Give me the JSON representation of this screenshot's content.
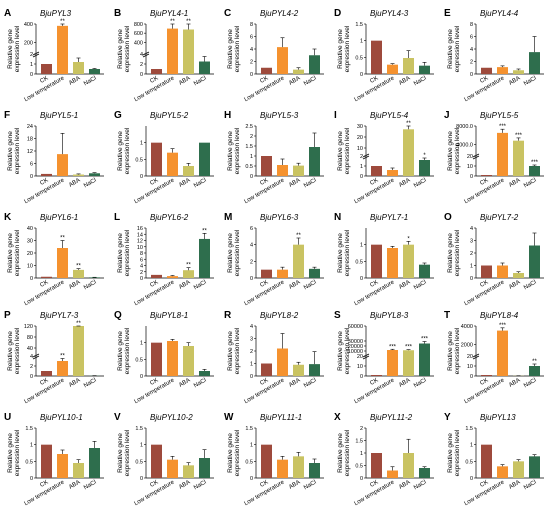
{
  "figure": {
    "colors": {
      "CK": "#9e4a3c",
      "Low temperature": "#f5922f",
      "ABA": "#c9c362",
      "NaCl": "#2e6e4d"
    },
    "ylabel_line1": "Relative gene",
    "ylabel_line2": "expression level"
  },
  "chart_data": [
    {
      "letter": "A",
      "title": "BjuPYL3",
      "type": "bar",
      "categories": [
        "CK",
        "Low temperature",
        "ABA",
        "NaCl"
      ],
      "values": [
        1.0,
        380,
        1.2,
        0.5
      ],
      "errors": [
        0.0,
        40,
        0.4,
        0.05
      ],
      "sig": [
        "",
        "**",
        "",
        ""
      ],
      "ylim": [
        0,
        400
      ],
      "ticks": [
        "0",
        "1",
        "2",
        "200",
        "400"
      ],
      "broken": true
    },
    {
      "letter": "B",
      "title": "BjuPYL4-1",
      "type": "bar",
      "categories": [
        "CK",
        "Low temperature",
        "ABA",
        "NaCl"
      ],
      "values": [
        1.0,
        700,
        680,
        2.5
      ],
      "errors": [
        0.0,
        150,
        120,
        1.0
      ],
      "sig": [
        "",
        "**",
        "**",
        ""
      ],
      "ylim": [
        0,
        800
      ],
      "ticks": [
        "0",
        "2",
        "4",
        "400",
        "600",
        "800"
      ],
      "broken": true
    },
    {
      "letter": "C",
      "title": "BjuPYL4-2",
      "type": "bar",
      "categories": [
        "CK",
        "Low temperature",
        "ABA",
        "NaCl"
      ],
      "values": [
        1.0,
        4.3,
        0.7,
        3.0
      ],
      "errors": [
        0.0,
        1.5,
        0.3,
        1.0
      ],
      "sig": [
        "",
        "",
        "",
        ""
      ],
      "ylim": [
        0,
        8
      ],
      "ticks": [
        "0",
        "2",
        "4",
        "6",
        "8"
      ],
      "broken": false
    },
    {
      "letter": "D",
      "title": "BjuPYL4-3",
      "type": "bar",
      "categories": [
        "CK",
        "Low temperature",
        "ABA",
        "NaCl"
      ],
      "values": [
        1.0,
        0.28,
        0.48,
        0.25
      ],
      "errors": [
        0.0,
        0.03,
        0.22,
        0.1
      ],
      "sig": [
        "",
        "",
        "",
        ""
      ],
      "ylim": [
        0,
        1.5
      ],
      "ticks": [
        "0",
        "0.5",
        "1",
        "1.5"
      ],
      "broken": false
    },
    {
      "letter": "E",
      "title": "BjuPYL4-4",
      "type": "bar",
      "categories": [
        "CK",
        "Low temperature",
        "ABA",
        "NaCl"
      ],
      "values": [
        1.0,
        1.1,
        0.6,
        3.5
      ],
      "errors": [
        0.0,
        0.2,
        0.2,
        2.5
      ],
      "sig": [
        "",
        "",
        "",
        ""
      ],
      "ylim": [
        0,
        8
      ],
      "ticks": [
        "0",
        "2",
        "4",
        "6",
        "8"
      ],
      "broken": false
    },
    {
      "letter": "F",
      "title": "BjuPYL5-1",
      "type": "bar",
      "categories": [
        "CK",
        "Low temperature",
        "ABA",
        "NaCl"
      ],
      "values": [
        1.0,
        10.5,
        0.7,
        1.3
      ],
      "errors": [
        0.0,
        10.0,
        0.3,
        0.3
      ],
      "sig": [
        "",
        "",
        "",
        ""
      ],
      "ylim": [
        0,
        24
      ],
      "ticks": [
        "0",
        "6",
        "12",
        "18",
        "24"
      ],
      "broken": false
    },
    {
      "letter": "G",
      "title": "BjuPYL5-2",
      "type": "bar",
      "categories": [
        "CK",
        "Low temperature",
        "ABA",
        "NaCl"
      ],
      "values": [
        1.0,
        0.7,
        0.3,
        1.0
      ],
      "errors": [
        0.0,
        0.12,
        0.08,
        0.0
      ],
      "sig": [
        "",
        "",
        "",
        ""
      ],
      "ylim": [
        0,
        1.5
      ],
      "ticks": [
        "0",
        "0.5",
        "1"
      ],
      "broken": false
    },
    {
      "letter": "H",
      "title": "BjuPYL5-3",
      "type": "bar",
      "categories": [
        "CK",
        "Low temperature",
        "ABA",
        "NaCl"
      ],
      "values": [
        1.0,
        0.55,
        0.52,
        1.45
      ],
      "errors": [
        0.0,
        0.3,
        0.12,
        0.7
      ],
      "sig": [
        "",
        "",
        "",
        ""
      ],
      "ylim": [
        0,
        2.5
      ],
      "ticks": [
        "0",
        "0.5",
        "1",
        "1.5",
        "2",
        "2.5"
      ],
      "broken": false
    },
    {
      "letter": "I",
      "title": "BjuPYL5-4",
      "type": "bar",
      "categories": [
        "CK",
        "Low temperature",
        "ABA",
        "NaCl"
      ],
      "values": [
        1.0,
        0.6,
        27,
        1.6
      ],
      "errors": [
        0.0,
        0.2,
        3.0,
        0.2
      ],
      "sig": [
        "",
        "",
        "**",
        "*"
      ],
      "ylim": [
        0,
        30
      ],
      "ticks": [
        "0",
        "1",
        "2",
        "10",
        "20",
        "30"
      ],
      "broken": true
    },
    {
      "letter": "J",
      "title": "BjuPYL5-5",
      "type": "bar",
      "categories": [
        "CK",
        "Low temperature",
        "ABA",
        "NaCl"
      ],
      "values": [
        1.0,
        6500,
        4800,
        10
      ],
      "errors": [
        0.0,
        800,
        600,
        1
      ],
      "sig": [
        "",
        "***",
        "***",
        "***"
      ],
      "ylim": [
        0,
        8000
      ],
      "ticks": [
        "0",
        "10",
        "20",
        "4000.0",
        "8000.0"
      ],
      "broken": true
    },
    {
      "letter": "K",
      "title": "BjuPYL6-1",
      "type": "bar",
      "categories": [
        "CK",
        "Low temperature",
        "ABA",
        "NaCl"
      ],
      "values": [
        1.0,
        24,
        6.5,
        0.5
      ],
      "errors": [
        0.0,
        6.0,
        1.0,
        0.1
      ],
      "sig": [
        "",
        "**",
        "**",
        ""
      ],
      "ylim": [
        0,
        40
      ],
      "ticks": [
        "0",
        "10",
        "20",
        "30",
        "40"
      ],
      "broken": false
    },
    {
      "letter": "L",
      "title": "BjuPYL6-2",
      "type": "bar",
      "categories": [
        "CK",
        "Low temperature",
        "ABA",
        "NaCl"
      ],
      "values": [
        1.0,
        0.6,
        2.5,
        12.5
      ],
      "errors": [
        0.0,
        0.2,
        0.8,
        1.8
      ],
      "sig": [
        "",
        "",
        "**",
        "**"
      ],
      "ylim": [
        0,
        16
      ],
      "ticks": [
        "0",
        "2",
        "4",
        "6",
        "8",
        "10",
        "12",
        "14",
        "16"
      ],
      "broken": false
    },
    {
      "letter": "M",
      "title": "BjuPYL6-3",
      "type": "bar",
      "categories": [
        "CK",
        "Low temperature",
        "ABA",
        "NaCl"
      ],
      "values": [
        1.0,
        1.0,
        4.0,
        1.1
      ],
      "errors": [
        0.0,
        0.3,
        0.8,
        0.2
      ],
      "sig": [
        "",
        "",
        "**",
        ""
      ],
      "ylim": [
        0,
        6
      ],
      "ticks": [
        "0",
        "2",
        "4",
        "6"
      ],
      "broken": false
    },
    {
      "letter": "N",
      "title": "BjuPYL7-1",
      "type": "bar",
      "categories": [
        "CK",
        "Low temperature",
        "ABA",
        "NaCl"
      ],
      "values": [
        1.0,
        0.9,
        1.0,
        0.4
      ],
      "errors": [
        0.0,
        0.05,
        0.1,
        0.05
      ],
      "sig": [
        "",
        "",
        "*",
        ""
      ],
      "ylim": [
        0,
        1.5
      ],
      "ticks": [
        "0",
        "0.5",
        "1"
      ],
      "broken": false
    },
    {
      "letter": "O",
      "title": "BjuPYL7-2",
      "type": "bar",
      "categories": [
        "CK",
        "Low temperature",
        "ABA",
        "NaCl"
      ],
      "values": [
        1.0,
        1.0,
        0.4,
        2.6
      ],
      "errors": [
        0.0,
        0.2,
        0.1,
        1.0
      ],
      "sig": [
        "",
        "",
        "",
        ""
      ],
      "ylim": [
        0,
        4
      ],
      "ticks": [
        "0",
        "1",
        "2",
        "3",
        "4"
      ],
      "broken": false
    },
    {
      "letter": "P",
      "title": "BjuPYL7-3",
      "type": "bar",
      "categories": [
        "CK",
        "Low temperature",
        "ABA",
        "NaCl"
      ],
      "values": [
        1.0,
        3.0,
        120,
        0.05
      ],
      "errors": [
        0.0,
        0.5,
        15,
        0.02
      ],
      "sig": [
        "",
        "**",
        "**",
        ""
      ],
      "ylim": [
        0,
        120
      ],
      "ticks": [
        "0",
        "2",
        "4",
        "40",
        "80",
        "120"
      ],
      "broken": true
    },
    {
      "letter": "Q",
      "title": "BjuPYL8-1",
      "type": "bar",
      "categories": [
        "CK",
        "Low temperature",
        "ABA",
        "NaCl"
      ],
      "values": [
        1.0,
        1.05,
        0.9,
        0.15
      ],
      "errors": [
        0.0,
        0.05,
        0.1,
        0.05
      ],
      "sig": [
        "",
        "",
        "",
        ""
      ],
      "ylim": [
        0,
        1.5
      ],
      "ticks": [
        "0",
        "0.5",
        "1"
      ],
      "broken": false
    },
    {
      "letter": "R",
      "title": "BjuPYL8-2",
      "type": "bar",
      "categories": [
        "CK",
        "Low temperature",
        "ABA",
        "NaCl"
      ],
      "values": [
        1.0,
        2.2,
        0.9,
        0.95
      ],
      "errors": [
        0.0,
        1.2,
        0.2,
        1.0
      ],
      "sig": [
        "",
        "",
        "",
        ""
      ],
      "ylim": [
        0,
        4
      ],
      "ticks": [
        "0",
        "1",
        "2",
        "3",
        "4"
      ],
      "broken": false
    },
    {
      "letter": "S",
      "title": "BjuPYL8-3",
      "type": "bar",
      "categories": [
        "CK",
        "Low temperature",
        "ABA",
        "NaCl"
      ],
      "values": [
        1.0,
        12000,
        11500,
        25000
      ],
      "errors": [
        0.0,
        1500,
        1200,
        4000
      ],
      "sig": [
        "",
        "***",
        "***",
        "***"
      ],
      "ylim": [
        0,
        60000
      ],
      "ticks": [
        "0",
        "10",
        "20",
        "10000",
        "20000",
        "30000",
        "60000"
      ],
      "broken": true
    },
    {
      "letter": "T",
      "title": "BjuPYL8-4",
      "type": "bar",
      "categories": [
        "CK",
        "Low temperature",
        "ABA",
        "NaCl"
      ],
      "values": [
        1.0,
        3500,
        0.2,
        10
      ],
      "errors": [
        0.0,
        300,
        0.05,
        2
      ],
      "sig": [
        "",
        "***",
        "",
        "**"
      ],
      "ylim": [
        0,
        4000
      ],
      "ticks": [
        "0",
        "10",
        "20",
        "2000",
        "4000"
      ],
      "broken": true
    },
    {
      "letter": "U",
      "title": "BjuPYL10-1",
      "type": "bar",
      "categories": [
        "CK",
        "Low temperature",
        "ABA",
        "NaCl"
      ],
      "values": [
        1.0,
        0.72,
        0.45,
        0.9
      ],
      "errors": [
        0.0,
        0.12,
        0.1,
        0.2
      ],
      "sig": [
        "",
        "",
        "",
        ""
      ],
      "ylim": [
        0,
        1.5
      ],
      "ticks": [
        "0",
        "0.5",
        "1",
        "1.5"
      ],
      "broken": false
    },
    {
      "letter": "V",
      "title": "BjuPYL10-2",
      "type": "bar",
      "categories": [
        "CK",
        "Low temperature",
        "ABA",
        "NaCl"
      ],
      "values": [
        1.0,
        0.55,
        0.38,
        0.6
      ],
      "errors": [
        0.0,
        0.1,
        0.08,
        0.25
      ],
      "sig": [
        "",
        "",
        "",
        ""
      ],
      "ylim": [
        0,
        1.5
      ],
      "ticks": [
        "0",
        "0.5",
        "1",
        "1.5"
      ],
      "broken": false
    },
    {
      "letter": "W",
      "title": "BjuPYL11-1",
      "type": "bar",
      "categories": [
        "CK",
        "Low temperature",
        "ABA",
        "NaCl"
      ],
      "values": [
        1.0,
        0.55,
        0.65,
        0.45
      ],
      "errors": [
        0.0,
        0.1,
        0.12,
        0.12
      ],
      "sig": [
        "",
        "",
        "",
        ""
      ],
      "ylim": [
        0,
        1.5
      ],
      "ticks": [
        "0",
        "0.5",
        "1",
        "1.5"
      ],
      "broken": false
    },
    {
      "letter": "X",
      "title": "BjuPYL11-2",
      "type": "bar",
      "categories": [
        "CK",
        "Low temperature",
        "ABA",
        "NaCl"
      ],
      "values": [
        1.0,
        0.3,
        1.0,
        0.4
      ],
      "errors": [
        0.0,
        0.15,
        0.55,
        0.05
      ],
      "sig": [
        "",
        "",
        "",
        ""
      ],
      "ylim": [
        0,
        2
      ],
      "ticks": [
        "0",
        "0.5",
        "1",
        "1.5",
        "2"
      ],
      "broken": false
    },
    {
      "letter": "Y",
      "title": "BjuPYL13",
      "type": "bar",
      "categories": [
        "CK",
        "Low temperature",
        "ABA",
        "NaCl"
      ],
      "values": [
        1.0,
        0.35,
        0.5,
        0.65
      ],
      "errors": [
        0.0,
        0.05,
        0.05,
        0.05
      ],
      "sig": [
        "",
        "",
        "",
        ""
      ],
      "ylim": [
        0,
        1.5
      ],
      "ticks": [
        "0",
        "0.5",
        "1",
        "1.5"
      ],
      "broken": false
    }
  ]
}
